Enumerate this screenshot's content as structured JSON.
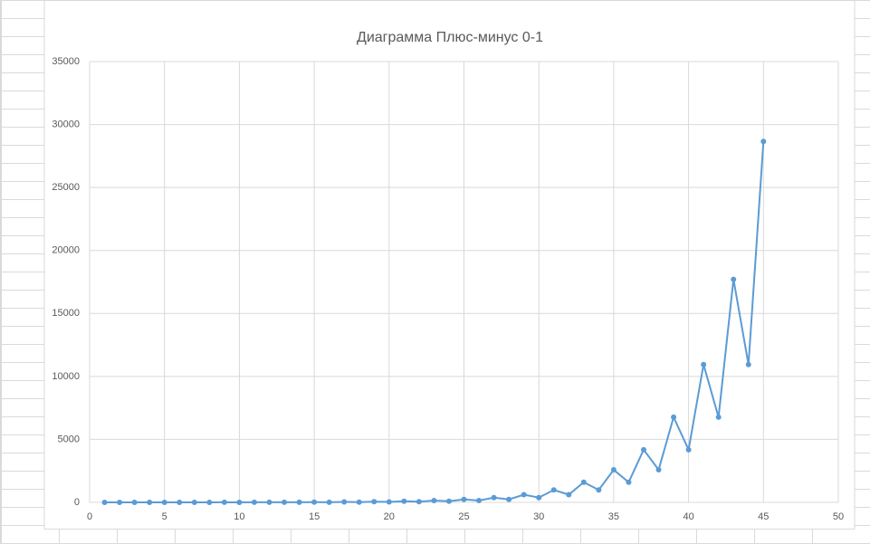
{
  "chart_data": {
    "type": "line",
    "title": "Диаграмма Плюс-минус 0-1",
    "x": [
      1,
      2,
      3,
      4,
      5,
      6,
      7,
      8,
      9,
      10,
      11,
      12,
      13,
      14,
      15,
      16,
      17,
      18,
      19,
      20,
      21,
      22,
      23,
      24,
      25,
      26,
      27,
      28,
      29,
      30,
      31,
      32,
      33,
      34,
      35,
      36,
      37,
      38,
      39,
      40,
      41,
      42,
      43,
      44,
      45
    ],
    "values": [
      1,
      0,
      1,
      1,
      2,
      1,
      3,
      2,
      5,
      3,
      8,
      5,
      13,
      8,
      21,
      13,
      34,
      21,
      55,
      34,
      89,
      55,
      144,
      89,
      233,
      144,
      377,
      233,
      610,
      377,
      987,
      610,
      1597,
      987,
      2584,
      1597,
      4181,
      2584,
      6765,
      4181,
      10946,
      6765,
      17711,
      10946,
      28657
    ],
    "color": "#5b9bd5",
    "xlim": [
      0,
      50
    ],
    "xticks": [
      0,
      5,
      10,
      15,
      20,
      25,
      30,
      35,
      40,
      45,
      50
    ],
    "ylim": [
      0,
      35000
    ],
    "yticks": [
      0,
      5000,
      10000,
      15000,
      20000,
      25000,
      30000,
      35000
    ],
    "grid": true
  }
}
